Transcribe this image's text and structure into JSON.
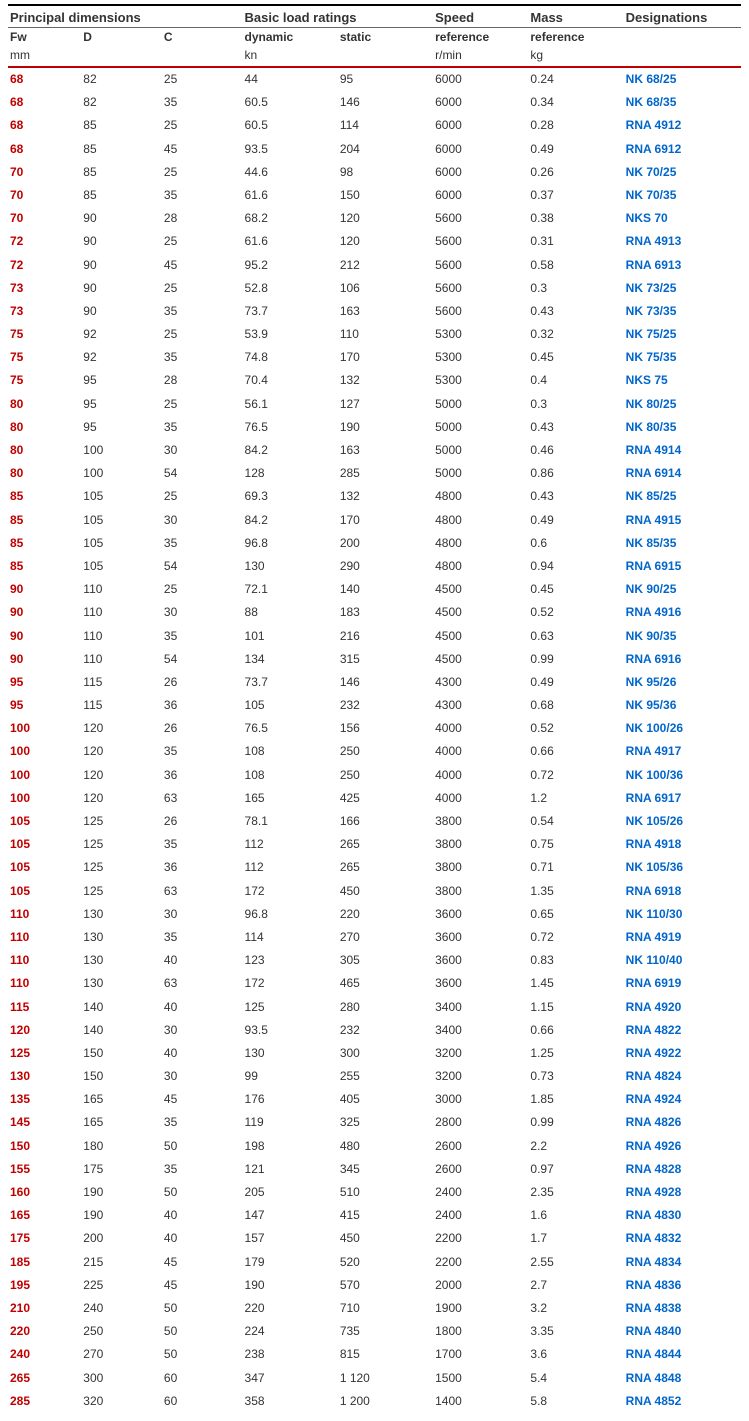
{
  "headers": {
    "group1": "Principal dimensions",
    "group2": "Basic load ratings",
    "group3": "Speed",
    "group4": "Mass",
    "group5": "Designations",
    "sub": {
      "fw": "Fw",
      "d": "D",
      "c": "C",
      "dynamic": "dynamic",
      "static": "static",
      "speed": "reference",
      "mass": "reference"
    },
    "units": {
      "mm": "mm",
      "kn": "kn",
      "rmin": "r/min",
      "kg": "kg"
    }
  },
  "colors": {
    "fw": "#c00000",
    "link": "#0066cc",
    "headerBorder": "#000000",
    "redRule": "#c00000",
    "text": "#333333",
    "background": "#ffffff"
  },
  "rows": [
    {
      "fw": "68",
      "d": "82",
      "c": "25",
      "dyn": "44",
      "stat": "95",
      "speed": "6000",
      "mass": "0.24",
      "desig": "NK 68/25"
    },
    {
      "fw": "68",
      "d": "82",
      "c": "35",
      "dyn": "60.5",
      "stat": "146",
      "speed": "6000",
      "mass": "0.34",
      "desig": "NK 68/35"
    },
    {
      "fw": "68",
      "d": "85",
      "c": "25",
      "dyn": "60.5",
      "stat": "114",
      "speed": "6000",
      "mass": "0.28",
      "desig": "RNA 4912"
    },
    {
      "fw": "68",
      "d": "85",
      "c": "45",
      "dyn": "93.5",
      "stat": "204",
      "speed": "6000",
      "mass": "0.49",
      "desig": "RNA 6912"
    },
    {
      "fw": "70",
      "d": "85",
      "c": "25",
      "dyn": "44.6",
      "stat": "98",
      "speed": "6000",
      "mass": "0.26",
      "desig": "NK 70/25"
    },
    {
      "fw": "70",
      "d": "85",
      "c": "35",
      "dyn": "61.6",
      "stat": "150",
      "speed": "6000",
      "mass": "0.37",
      "desig": "NK 70/35"
    },
    {
      "fw": "70",
      "d": "90",
      "c": "28",
      "dyn": "68.2",
      "stat": "120",
      "speed": "5600",
      "mass": "0.38",
      "desig": "NKS 70"
    },
    {
      "fw": "72",
      "d": "90",
      "c": "25",
      "dyn": "61.6",
      "stat": "120",
      "speed": "5600",
      "mass": "0.31",
      "desig": "RNA 4913"
    },
    {
      "fw": "72",
      "d": "90",
      "c": "45",
      "dyn": "95.2",
      "stat": "212",
      "speed": "5600",
      "mass": "0.58",
      "desig": "RNA 6913"
    },
    {
      "fw": "73",
      "d": "90",
      "c": "25",
      "dyn": "52.8",
      "stat": "106",
      "speed": "5600",
      "mass": "0.3",
      "desig": "NK 73/25"
    },
    {
      "fw": "73",
      "d": "90",
      "c": "35",
      "dyn": "73.7",
      "stat": "163",
      "speed": "5600",
      "mass": "0.43",
      "desig": "NK 73/35"
    },
    {
      "fw": "75",
      "d": "92",
      "c": "25",
      "dyn": "53.9",
      "stat": "110",
      "speed": "5300",
      "mass": "0.32",
      "desig": "NK 75/25"
    },
    {
      "fw": "75",
      "d": "92",
      "c": "35",
      "dyn": "74.8",
      "stat": "170",
      "speed": "5300",
      "mass": "0.45",
      "desig": "NK 75/35"
    },
    {
      "fw": "75",
      "d": "95",
      "c": "28",
      "dyn": "70.4",
      "stat": "132",
      "speed": "5300",
      "mass": "0.4",
      "desig": "NKS 75"
    },
    {
      "fw": "80",
      "d": "95",
      "c": "25",
      "dyn": "56.1",
      "stat": "127",
      "speed": "5000",
      "mass": "0.3",
      "desig": "NK 80/25"
    },
    {
      "fw": "80",
      "d": "95",
      "c": "35",
      "dyn": "76.5",
      "stat": "190",
      "speed": "5000",
      "mass": "0.43",
      "desig": "NK 80/35"
    },
    {
      "fw": "80",
      "d": "100",
      "c": "30",
      "dyn": "84.2",
      "stat": "163",
      "speed": "5000",
      "mass": "0.46",
      "desig": "RNA 4914"
    },
    {
      "fw": "80",
      "d": "100",
      "c": "54",
      "dyn": "128",
      "stat": "285",
      "speed": "5000",
      "mass": "0.86",
      "desig": "RNA 6914"
    },
    {
      "fw": "85",
      "d": "105",
      "c": "25",
      "dyn": "69.3",
      "stat": "132",
      "speed": "4800",
      "mass": "0.43",
      "desig": "NK 85/25"
    },
    {
      "fw": "85",
      "d": "105",
      "c": "30",
      "dyn": "84.2",
      "stat": "170",
      "speed": "4800",
      "mass": "0.49",
      "desig": "RNA 4915"
    },
    {
      "fw": "85",
      "d": "105",
      "c": "35",
      "dyn": "96.8",
      "stat": "200",
      "speed": "4800",
      "mass": "0.6",
      "desig": "NK 85/35"
    },
    {
      "fw": "85",
      "d": "105",
      "c": "54",
      "dyn": "130",
      "stat": "290",
      "speed": "4800",
      "mass": "0.94",
      "desig": "RNA 6915"
    },
    {
      "fw": "90",
      "d": "110",
      "c": "25",
      "dyn": "72.1",
      "stat": "140",
      "speed": "4500",
      "mass": "0.45",
      "desig": "NK 90/25"
    },
    {
      "fw": "90",
      "d": "110",
      "c": "30",
      "dyn": "88",
      "stat": "183",
      "speed": "4500",
      "mass": "0.52",
      "desig": "RNA 4916"
    },
    {
      "fw": "90",
      "d": "110",
      "c": "35",
      "dyn": "101",
      "stat": "216",
      "speed": "4500",
      "mass": "0.63",
      "desig": "NK 90/35"
    },
    {
      "fw": "90",
      "d": "110",
      "c": "54",
      "dyn": "134",
      "stat": "315",
      "speed": "4500",
      "mass": "0.99",
      "desig": "RNA 6916"
    },
    {
      "fw": "95",
      "d": "115",
      "c": "26",
      "dyn": "73.7",
      "stat": "146",
      "speed": "4300",
      "mass": "0.49",
      "desig": "NK 95/26"
    },
    {
      "fw": "95",
      "d": "115",
      "c": "36",
      "dyn": "105",
      "stat": "232",
      "speed": "4300",
      "mass": "0.68",
      "desig": "NK 95/36"
    },
    {
      "fw": "100",
      "d": "120",
      "c": "26",
      "dyn": "76.5",
      "stat": "156",
      "speed": "4000",
      "mass": "0.52",
      "desig": "NK 100/26"
    },
    {
      "fw": "100",
      "d": "120",
      "c": "35",
      "dyn": "108",
      "stat": "250",
      "speed": "4000",
      "mass": "0.66",
      "desig": "RNA 4917"
    },
    {
      "fw": "100",
      "d": "120",
      "c": "36",
      "dyn": "108",
      "stat": "250",
      "speed": "4000",
      "mass": "0.72",
      "desig": "NK 100/36"
    },
    {
      "fw": "100",
      "d": "120",
      "c": "63",
      "dyn": "165",
      "stat": "425",
      "speed": "4000",
      "mass": "1.2",
      "desig": "RNA 6917"
    },
    {
      "fw": "105",
      "d": "125",
      "c": "26",
      "dyn": "78.1",
      "stat": "166",
      "speed": "3800",
      "mass": "0.54",
      "desig": "NK 105/26"
    },
    {
      "fw": "105",
      "d": "125",
      "c": "35",
      "dyn": "112",
      "stat": "265",
      "speed": "3800",
      "mass": "0.75",
      "desig": "RNA 4918"
    },
    {
      "fw": "105",
      "d": "125",
      "c": "36",
      "dyn": "112",
      "stat": "265",
      "speed": "3800",
      "mass": "0.71",
      "desig": "NK 105/36"
    },
    {
      "fw": "105",
      "d": "125",
      "c": "63",
      "dyn": "172",
      "stat": "450",
      "speed": "3800",
      "mass": "1.35",
      "desig": "RNA 6918"
    },
    {
      "fw": "110",
      "d": "130",
      "c": "30",
      "dyn": "96.8",
      "stat": "220",
      "speed": "3600",
      "mass": "0.65",
      "desig": "NK 110/30"
    },
    {
      "fw": "110",
      "d": "130",
      "c": "35",
      "dyn": "114",
      "stat": "270",
      "speed": "3600",
      "mass": "0.72",
      "desig": "RNA 4919"
    },
    {
      "fw": "110",
      "d": "130",
      "c": "40",
      "dyn": "123",
      "stat": "305",
      "speed": "3600",
      "mass": "0.83",
      "desig": "NK 110/40"
    },
    {
      "fw": "110",
      "d": "130",
      "c": "63",
      "dyn": "172",
      "stat": "465",
      "speed": "3600",
      "mass": "1.45",
      "desig": "RNA 6919"
    },
    {
      "fw": "115",
      "d": "140",
      "c": "40",
      "dyn": "125",
      "stat": "280",
      "speed": "3400",
      "mass": "1.15",
      "desig": "RNA 4920"
    },
    {
      "fw": "120",
      "d": "140",
      "c": "30",
      "dyn": "93.5",
      "stat": "232",
      "speed": "3400",
      "mass": "0.66",
      "desig": "RNA 4822"
    },
    {
      "fw": "125",
      "d": "150",
      "c": "40",
      "dyn": "130",
      "stat": "300",
      "speed": "3200",
      "mass": "1.25",
      "desig": "RNA 4922"
    },
    {
      "fw": "130",
      "d": "150",
      "c": "30",
      "dyn": "99",
      "stat": "255",
      "speed": "3200",
      "mass": "0.73",
      "desig": "RNA 4824"
    },
    {
      "fw": "135",
      "d": "165",
      "c": "45",
      "dyn": "176",
      "stat": "405",
      "speed": "3000",
      "mass": "1.85",
      "desig": "RNA 4924"
    },
    {
      "fw": "145",
      "d": "165",
      "c": "35",
      "dyn": "119",
      "stat": "325",
      "speed": "2800",
      "mass": "0.99",
      "desig": "RNA 4826"
    },
    {
      "fw": "150",
      "d": "180",
      "c": "50",
      "dyn": "198",
      "stat": "480",
      "speed": "2600",
      "mass": "2.2",
      "desig": "RNA 4926"
    },
    {
      "fw": "155",
      "d": "175",
      "c": "35",
      "dyn": "121",
      "stat": "345",
      "speed": "2600",
      "mass": "0.97",
      "desig": "RNA 4828"
    },
    {
      "fw": "160",
      "d": "190",
      "c": "50",
      "dyn": "205",
      "stat": "510",
      "speed": "2400",
      "mass": "2.35",
      "desig": "RNA 4928"
    },
    {
      "fw": "165",
      "d": "190",
      "c": "40",
      "dyn": "147",
      "stat": "415",
      "speed": "2400",
      "mass": "1.6",
      "desig": "RNA 4830"
    },
    {
      "fw": "175",
      "d": "200",
      "c": "40",
      "dyn": "157",
      "stat": "450",
      "speed": "2200",
      "mass": "1.7",
      "desig": "RNA 4832"
    },
    {
      "fw": "185",
      "d": "215",
      "c": "45",
      "dyn": "179",
      "stat": "520",
      "speed": "2200",
      "mass": "2.55",
      "desig": "RNA 4834"
    },
    {
      "fw": "195",
      "d": "225",
      "c": "45",
      "dyn": "190",
      "stat": "570",
      "speed": "2000",
      "mass": "2.7",
      "desig": "RNA 4836"
    },
    {
      "fw": "210",
      "d": "240",
      "c": "50",
      "dyn": "220",
      "stat": "710",
      "speed": "1900",
      "mass": "3.2",
      "desig": "RNA 4838"
    },
    {
      "fw": "220",
      "d": "250",
      "c": "50",
      "dyn": "224",
      "stat": "735",
      "speed": "1800",
      "mass": "3.35",
      "desig": "RNA 4840"
    },
    {
      "fw": "240",
      "d": "270",
      "c": "50",
      "dyn": "238",
      "stat": "815",
      "speed": "1700",
      "mass": "3.6",
      "desig": "RNA 4844"
    },
    {
      "fw": "265",
      "d": "300",
      "c": "60",
      "dyn": "347",
      "stat": "1 120",
      "speed": "1500",
      "mass": "5.4",
      "desig": "RNA 4848"
    },
    {
      "fw": "285",
      "d": "320",
      "c": "60",
      "dyn": "358",
      "stat": "1 200",
      "speed": "1400",
      "mass": "5.8",
      "desig": "RNA 4852"
    }
  ]
}
